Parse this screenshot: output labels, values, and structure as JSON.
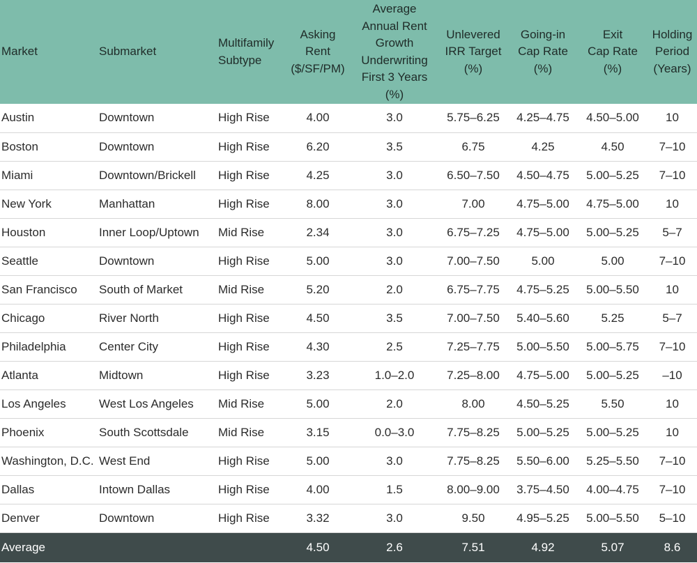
{
  "table": {
    "headers": [
      "Market",
      "Submarket",
      "Multifamily\nSubtype",
      "Asking\nRent\n($/SF/PM)",
      "Average\nAnnual Rent\nGrowth\nUnderwriting\nFirst 3 Years\n(%)",
      "Unlevered\nIRR Target\n(%)",
      "Going-in\nCap Rate\n(%)",
      "Exit\nCap Rate\n(%)",
      "Holding\nPeriod\n(Years)"
    ],
    "rows": [
      [
        "Austin",
        "Downtown",
        "High Rise",
        "4.00",
        "3.0",
        "5.75–6.25",
        "4.25–4.75",
        "4.50–5.00",
        "10"
      ],
      [
        "Boston",
        "Downtown",
        "High Rise",
        "6.20",
        "3.5",
        "6.75",
        "4.25",
        "4.50",
        "7–10"
      ],
      [
        "Miami",
        "Downtown/Brickell",
        "High Rise",
        "4.25",
        "3.0",
        "6.50–7.50",
        "4.50–4.75",
        "5.00–5.25",
        "7–10"
      ],
      [
        "New York",
        "Manhattan",
        "High Rise",
        "8.00",
        "3.0",
        "7.00",
        "4.75–5.00",
        "4.75–5.00",
        "10"
      ],
      [
        "Houston",
        "Inner Loop/Uptown",
        "Mid Rise",
        "2.34",
        "3.0",
        "6.75–7.25",
        "4.75–5.00",
        "5.00–5.25",
        "5–7"
      ],
      [
        "Seattle",
        "Downtown",
        "High Rise",
        "5.00",
        "3.0",
        "7.00–7.50",
        "5.00",
        "5.00",
        "7–10"
      ],
      [
        "San Francisco",
        "South of Market",
        "Mid Rise",
        "5.20",
        "2.0",
        "6.75–7.75",
        "4.75–5.25",
        "5.00–5.50",
        "10"
      ],
      [
        "Chicago",
        "River North",
        "High Rise",
        "4.50",
        "3.5",
        "7.00–7.50",
        "5.40–5.60",
        "5.25",
        "5–7"
      ],
      [
        "Philadelphia",
        "Center City",
        "High Rise",
        "4.30",
        "2.5",
        "7.25–7.75",
        "5.00–5.50",
        "5.00–5.75",
        "7–10"
      ],
      [
        "Atlanta",
        "Midtown",
        "High Rise",
        "3.23",
        "1.0–2.0",
        "7.25–8.00",
        "4.75–5.00",
        "5.00–5.25",
        "–10"
      ],
      [
        "Los Angeles",
        "West Los Angeles",
        "Mid Rise",
        "5.00",
        "2.0",
        "8.00",
        "4.50–5.25",
        "5.50",
        "10"
      ],
      [
        "Phoenix",
        "South Scottsdale",
        "Mid Rise",
        "3.15",
        "0.0–3.0",
        "7.75–8.25",
        "5.00–5.25",
        "5.00–5.25",
        "10"
      ],
      [
        "Washington, D.C.",
        "West End",
        "High Rise",
        "5.00",
        "3.0",
        "7.75–8.25",
        "5.50–6.00",
        "5.25–5.50",
        "7–10"
      ],
      [
        "Dallas",
        "Intown Dallas",
        "High Rise",
        "4.00",
        "1.5",
        "8.00–9.00",
        "3.75–4.50",
        "4.00–4.75",
        "7–10"
      ],
      [
        "Denver",
        "Downtown",
        "High Rise",
        "3.32",
        "3.0",
        "9.50",
        "4.95–5.25",
        "5.00–5.50",
        "5–10"
      ]
    ],
    "footer": [
      "Average",
      "",
      "",
      "4.50",
      "2.6",
      "7.51",
      "4.92",
      "5.07",
      "8.6"
    ]
  },
  "colors": {
    "header_bg": "#7ebcab",
    "footer_bg": "#3f4b4b",
    "row_divider": "#d6d6d6"
  }
}
